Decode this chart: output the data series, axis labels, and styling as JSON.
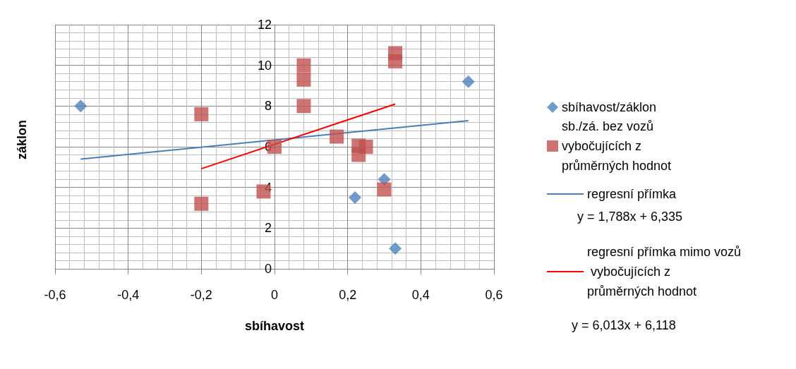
{
  "chart_data": {
    "type": "scatter",
    "xlabel": "sbíhavost",
    "ylabel": "záklon",
    "xlim": [
      -0.6,
      0.6
    ],
    "xticks": [
      {
        "value": -0.6,
        "label": "-0,6"
      },
      {
        "value": -0.4,
        "label": "-0,4"
      },
      {
        "value": -0.2,
        "label": "-0,2"
      },
      0,
      {
        "value": 0.2,
        "label": "0,2"
      },
      {
        "value": 0.4,
        "label": "0,4"
      },
      {
        "value": 0.6,
        "label": "0,6"
      }
    ],
    "ylim": [
      0,
      12
    ],
    "yticks": [
      0,
      2,
      4,
      6,
      8,
      10,
      12
    ],
    "grid": true,
    "legend": "right",
    "series": [
      {
        "name": "sbíhavost/záklon",
        "marker": "diamond",
        "color": "#4f81bd",
        "x": [
          -0.53,
          0.22,
          0.3,
          0.33,
          0.53
        ],
        "values": [
          8.0,
          3.5,
          4.4,
          1.0,
          9.2
        ]
      },
      {
        "name": "sb./zá. bez vozů vybočujících z průměrných hodnot",
        "marker": "square",
        "color": "#c0504d",
        "x": [
          -0.2,
          -0.2,
          -0.03,
          0,
          0.08,
          0.08,
          0.08,
          0.17,
          0.23,
          0.25,
          0.3,
          0.33,
          0.33,
          0.23
        ],
        "values": [
          7.6,
          3.2,
          3.8,
          6.0,
          10.0,
          9.3,
          8.0,
          6.5,
          5.6,
          6.0,
          3.9,
          10.6,
          10.2,
          6.05
        ]
      },
      {
        "name": "regresní přímka",
        "type": "line",
        "marker": "none",
        "color": "#4a7ebb",
        "x": [
          -0.53,
          0.53
        ],
        "values": [
          5.39,
          7.28
        ]
      },
      {
        "name": "regresní přímka mimo vozů vybočujících z průměrných hodnot",
        "type": "line",
        "marker": "none",
        "color": "#ff0000",
        "x": [
          -0.2,
          0.33
        ],
        "values": [
          4.92,
          8.1
        ]
      }
    ],
    "annotations": [
      "y = 1,788x + 6,335",
      "y = 6,013x + 6,118"
    ]
  }
}
